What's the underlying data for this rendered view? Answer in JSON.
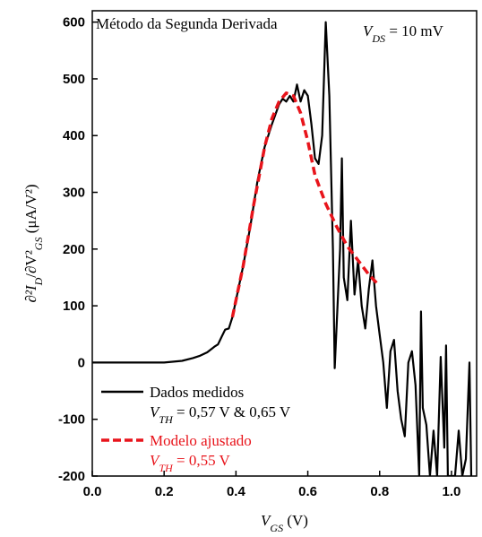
{
  "chart_data": {
    "type": "line",
    "title": "Método da Segunda Derivada",
    "annotation": [
      {
        "text": "V"
      },
      {
        "text": "DS",
        "sub": true
      },
      {
        "text": " = 10 mV"
      }
    ],
    "xlabel": [
      {
        "text": "V"
      },
      {
        "text": "GS",
        "sub": true
      },
      {
        "text": "  (V)"
      }
    ],
    "ylabel": [
      {
        "text": "∂²I"
      },
      {
        "text": "D",
        "sub": true
      },
      {
        "text": "/∂V²"
      },
      {
        "text": "GS",
        "sub": true
      },
      {
        "text": "  (μA/V²)"
      }
    ],
    "xlim": [
      0,
      1.07
    ],
    "ylim": [
      -200,
      620
    ],
    "xticks": [
      {
        "value": 0,
        "label": "0.0"
      },
      0.2,
      0.4,
      0.6,
      0.8,
      {
        "value": 1,
        "label": "1.0"
      }
    ],
    "yticks": [
      -200,
      -100,
      0,
      100,
      200,
      300,
      400,
      500,
      600
    ],
    "series": [
      {
        "name": "Dados medidos",
        "note": [
          {
            "text": "V"
          },
          {
            "text": "TH",
            "sub": true
          },
          {
            "text": " = 0,57 V & 0,65 V"
          }
        ],
        "color": "#000000",
        "dash": false,
        "x": [
          0,
          0.1,
          0.2,
          0.25,
          0.28,
          0.3,
          0.32,
          0.34,
          0.35,
          0.36,
          0.37,
          0.38,
          0.39,
          0.4,
          0.42,
          0.44,
          0.46,
          0.48,
          0.5,
          0.52,
          0.53,
          0.54,
          0.55,
          0.56,
          0.57,
          0.58,
          0.59,
          0.6,
          0.61,
          0.62,
          0.63,
          0.64,
          0.65,
          0.66,
          0.67,
          0.675,
          0.69,
          0.695,
          0.7,
          0.71,
          0.72,
          0.73,
          0.74,
          0.75,
          0.76,
          0.77,
          0.78,
          0.79,
          0.8,
          0.81,
          0.82,
          0.83,
          0.84,
          0.85,
          0.86,
          0.87,
          0.88,
          0.89,
          0.9,
          0.91,
          0.915,
          0.92,
          0.93,
          0.94,
          0.95,
          0.96,
          0.97,
          0.98,
          0.985,
          0.99,
          1.0,
          1.01,
          1.02,
          1.03,
          1.04,
          1.05,
          1.055
        ],
        "values": [
          0,
          0,
          0,
          3,
          8,
          12,
          18,
          28,
          32,
          45,
          58,
          60,
          80,
          110,
          170,
          240,
          320,
          380,
          420,
          455,
          465,
          460,
          470,
          460,
          490,
          460,
          480,
          470,
          420,
          360,
          350,
          400,
          600,
          470,
          200,
          -10,
          200,
          360,
          150,
          110,
          250,
          120,
          180,
          100,
          60,
          130,
          180,
          100,
          50,
          0,
          -80,
          20,
          40,
          -50,
          -100,
          -130,
          0,
          20,
          -40,
          -200,
          90,
          -80,
          -110,
          -200,
          -120,
          -200,
          10,
          -150,
          30,
          -200,
          -200,
          -200,
          -120,
          -200,
          -170,
          0,
          -200
        ]
      },
      {
        "name": "Modelo ajustado",
        "note": [
          {
            "text": "V"
          },
          {
            "text": "TH",
            "sub": true
          },
          {
            "text": " = 0,55 V"
          }
        ],
        "color": "#e8141b",
        "dash": true,
        "x": [
          0.39,
          0.42,
          0.45,
          0.48,
          0.5,
          0.52,
          0.54,
          0.56,
          0.58,
          0.6,
          0.62,
          0.65,
          0.68,
          0.71,
          0.74,
          0.77,
          0.8
        ],
        "values": [
          80,
          170,
          280,
          380,
          430,
          460,
          475,
          470,
          440,
          390,
          330,
          280,
          240,
          205,
          180,
          155,
          135
        ]
      }
    ]
  }
}
